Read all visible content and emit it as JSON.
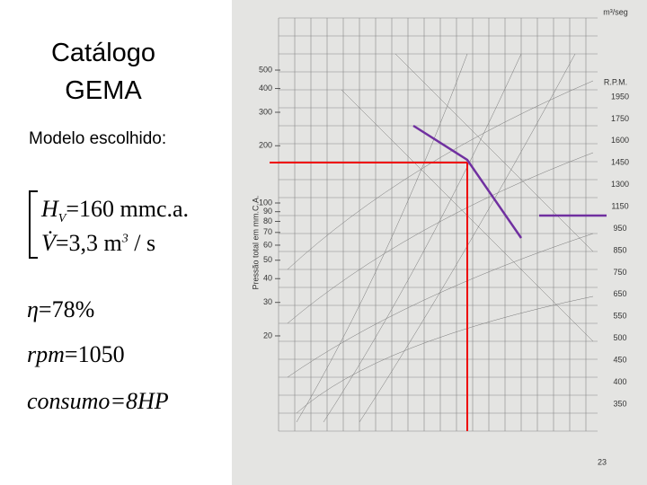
{
  "title_lines": [
    "Catálogo",
    "GEMA"
  ],
  "subtitle": "Modelo escolhido:",
  "formulas": {
    "head": {
      "symbol": "H",
      "subscript": "V",
      "rhs": "=160 mmc.a."
    },
    "flow": {
      "symbol": "V̇",
      "rhs": "=3,3 m",
      "superscript": "3",
      "tail": " / s"
    },
    "efficiency": {
      "symbol": "η",
      "rhs": "=78%"
    },
    "speed": {
      "symbol": "rpm",
      "rhs": "=1050"
    },
    "power": {
      "symbol": "consumo",
      "rhs": "=8HP"
    }
  },
  "scan": {
    "pressure_axis_label": "Pressão total em mm.C.A.",
    "pressure_ticks": [
      500,
      400,
      300,
      200,
      100,
      90,
      80,
      70,
      60,
      50,
      40,
      30,
      20
    ],
    "rpm_label": "R.P.M.",
    "rpm_ticks": [
      1950,
      1750,
      1600,
      1450,
      1300,
      1150,
      950,
      850,
      750,
      650,
      550,
      500,
      450,
      400,
      350
    ],
    "flow_unit": "m³/seg"
  },
  "page_number": "23"
}
